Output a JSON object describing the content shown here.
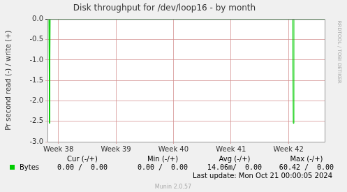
{
  "chart_data": {
    "type": "line",
    "title": "Disk throughput for /dev/loop16 - by month",
    "y_label": "Pr second read (-) / write (+)",
    "x": [
      -1.33,
      -1.16,
      -1.08,
      -1.0,
      28.5,
      28.58,
      28.66,
      32.4
    ],
    "series": [
      {
        "name": "Bytes",
        "color": "#00cc00",
        "values": [
          0,
          0,
          -2.55,
          0,
          0,
          -2.55,
          0,
          0
        ]
      }
    ],
    "xlim": [
      -1.33,
      32.4
    ],
    "xticks": [
      {
        "value": 0,
        "label": "Week 38"
      },
      {
        "value": 7,
        "label": "Week 39"
      },
      {
        "value": 14,
        "label": "Week 40"
      },
      {
        "value": 21,
        "label": "Week 41"
      },
      {
        "value": 28,
        "label": "Week 42"
      }
    ],
    "ylim": [
      -3,
      0
    ],
    "yticks": [
      {
        "value": 0,
        "label": "0.0"
      },
      -0.5,
      {
        "value": -1,
        "label": "-1.0"
      },
      -1.5,
      {
        "value": -2,
        "label": "-2.0"
      },
      -2.5,
      {
        "value": -3,
        "label": "-3.0"
      }
    ],
    "grid": true,
    "legend_table": {
      "columns": [
        "Cur (-/+)",
        "Min (-/+)",
        "Avg (-/+)",
        "Max (-/+)"
      ],
      "rows": [
        {
          "name": "Bytes",
          "values": [
            "0.00 /  0.00",
            "0.00 /  0.00",
            "14.06m/  0.00",
            "60.42 /  0.00"
          ]
        }
      ]
    },
    "last_update": "Last update: Mon Oct 21 00:00:05 2024",
    "footer": "Munin 2.0.57",
    "watermark": "RRDTOOL / TOBI OETIKER"
  }
}
